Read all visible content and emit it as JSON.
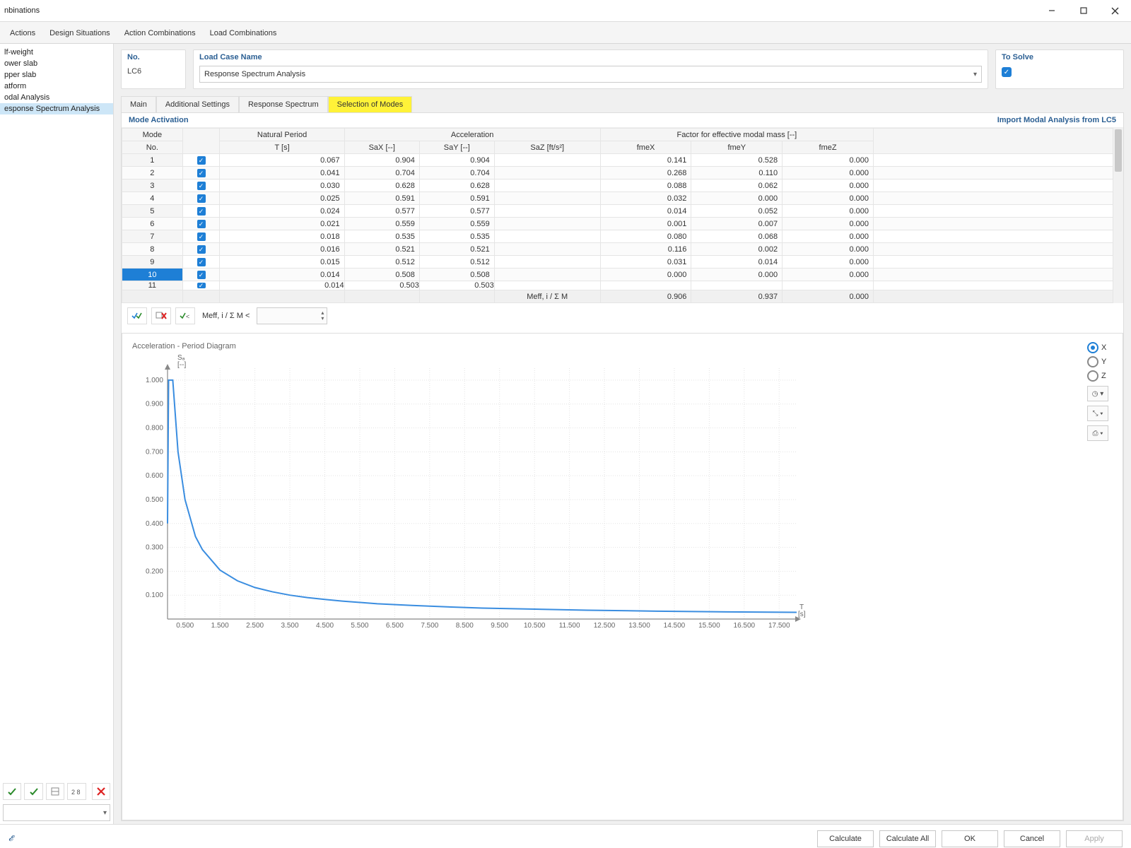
{
  "window": {
    "title": "nbinations"
  },
  "menubar": [
    "Actions",
    "Design Situations",
    "Action Combinations",
    "Load Combinations"
  ],
  "sidebar": {
    "items": [
      {
        "label": "lf-weight",
        "selected": false
      },
      {
        "label": "ower slab",
        "selected": false
      },
      {
        "label": "pper slab",
        "selected": false
      },
      {
        "label": "atform",
        "selected": false
      },
      {
        "label": "odal Analysis",
        "selected": false
      },
      {
        "label": "esponse Spectrum Analysis",
        "selected": true
      }
    ]
  },
  "header": {
    "no_label": "No.",
    "no_value": "LC6",
    "lcn_label": "Load Case Name",
    "lcn_value": "Response Spectrum Analysis",
    "solve_label": "To Solve"
  },
  "tabs": [
    {
      "label": "Main",
      "active": false
    },
    {
      "label": "Additional Settings",
      "active": false
    },
    {
      "label": "Response Spectrum",
      "active": false
    },
    {
      "label": "Selection of Modes",
      "active": true
    }
  ],
  "mode_section": {
    "title": "Mode Activation",
    "import_link": "Import Modal Analysis from LC5"
  },
  "table": {
    "group_headers": {
      "mode": "Mode",
      "mode_no": "No.",
      "nat": "Natural Period",
      "nat_sub": "T [s]",
      "acc": "Acceleration",
      "sax": "SaX [--]",
      "say": "SaY [--]",
      "saz": "SaZ [ft/s²]",
      "fact": "Factor for effective modal mass [--]",
      "fmex": "fmeX",
      "fmey": "fmeY",
      "fmez": "fmeZ"
    },
    "rows": [
      {
        "n": 1,
        "T": "0.067",
        "sax": "0.904",
        "say": "0.904",
        "saz": "",
        "fmex": "0.141",
        "fmey": "0.528",
        "fmez": "0.000"
      },
      {
        "n": 2,
        "T": "0.041",
        "sax": "0.704",
        "say": "0.704",
        "saz": "",
        "fmex": "0.268",
        "fmey": "0.110",
        "fmez": "0.000"
      },
      {
        "n": 3,
        "T": "0.030",
        "sax": "0.628",
        "say": "0.628",
        "saz": "",
        "fmex": "0.088",
        "fmey": "0.062",
        "fmez": "0.000"
      },
      {
        "n": 4,
        "T": "0.025",
        "sax": "0.591",
        "say": "0.591",
        "saz": "",
        "fmex": "0.032",
        "fmey": "0.000",
        "fmez": "0.000"
      },
      {
        "n": 5,
        "T": "0.024",
        "sax": "0.577",
        "say": "0.577",
        "saz": "",
        "fmex": "0.014",
        "fmey": "0.052",
        "fmez": "0.000"
      },
      {
        "n": 6,
        "T": "0.021",
        "sax": "0.559",
        "say": "0.559",
        "saz": "",
        "fmex": "0.001",
        "fmey": "0.007",
        "fmez": "0.000"
      },
      {
        "n": 7,
        "T": "0.018",
        "sax": "0.535",
        "say": "0.535",
        "saz": "",
        "fmex": "0.080",
        "fmey": "0.068",
        "fmez": "0.000"
      },
      {
        "n": 8,
        "T": "0.016",
        "sax": "0.521",
        "say": "0.521",
        "saz": "",
        "fmex": "0.116",
        "fmey": "0.002",
        "fmez": "0.000"
      },
      {
        "n": 9,
        "T": "0.015",
        "sax": "0.512",
        "say": "0.512",
        "saz": "",
        "fmex": "0.031",
        "fmey": "0.014",
        "fmez": "0.000"
      },
      {
        "n": 10,
        "T": "0.014",
        "sax": "0.508",
        "say": "0.508",
        "saz": "",
        "fmex": "0.000",
        "fmey": "0.000",
        "fmez": "0.000",
        "selected": true
      }
    ],
    "partial_row": {
      "n": 11,
      "T": "0.014",
      "sax": "0.503",
      "say": "0.503"
    },
    "summary": {
      "label": "Meff, i / Σ M",
      "fmex": "0.906",
      "fmey": "0.937",
      "fmez": "0.000"
    }
  },
  "filterbar": {
    "label": "Meff, i / Σ M <"
  },
  "chart": {
    "title": "Acceleration - Period Diagram",
    "y_label_top": "Sₐ",
    "y_label_unit": "[--]",
    "x_label": "T",
    "x_unit": "[s]",
    "xlim": [
      0,
      18
    ],
    "ylim": [
      0,
      1.05
    ],
    "xticks": [
      0.5,
      1.5,
      2.5,
      3.5,
      4.5,
      5.5,
      6.5,
      7.5,
      8.5,
      9.5,
      10.5,
      11.5,
      12.5,
      13.5,
      14.5,
      15.5,
      16.5,
      17.5
    ],
    "yticks": [
      0.1,
      0.2,
      0.3,
      0.4,
      0.5,
      0.6,
      0.7,
      0.8,
      0.9,
      1.0
    ],
    "curve_color": "#3a8de0",
    "grid_color": "#e3e3e3",
    "background": "#ffffff",
    "curve": [
      [
        0.0,
        0.4
      ],
      [
        0.03,
        1.0
      ],
      [
        0.15,
        1.0
      ],
      [
        0.3,
        0.7
      ],
      [
        0.5,
        0.5
      ],
      [
        0.8,
        0.345
      ],
      [
        1.0,
        0.29
      ],
      [
        1.5,
        0.205
      ],
      [
        2.0,
        0.16
      ],
      [
        2.5,
        0.132
      ],
      [
        3.0,
        0.114
      ],
      [
        3.5,
        0.1
      ],
      [
        4.0,
        0.09
      ],
      [
        4.5,
        0.082
      ],
      [
        5.0,
        0.075
      ],
      [
        6.0,
        0.064
      ],
      [
        7.0,
        0.057
      ],
      [
        8.0,
        0.051
      ],
      [
        9.0,
        0.046
      ],
      [
        10.0,
        0.043
      ],
      [
        12.0,
        0.037
      ],
      [
        14.0,
        0.033
      ],
      [
        16.0,
        0.03
      ],
      [
        18.0,
        0.028
      ]
    ]
  },
  "axis_radios": [
    {
      "label": "X",
      "selected": true
    },
    {
      "label": "Y",
      "selected": false
    },
    {
      "label": "Z",
      "selected": false
    }
  ],
  "footer": {
    "calculate": "Calculate",
    "calcall": "Calculate All",
    "ok": "OK",
    "cancel": "Cancel",
    "apply": "Apply"
  }
}
